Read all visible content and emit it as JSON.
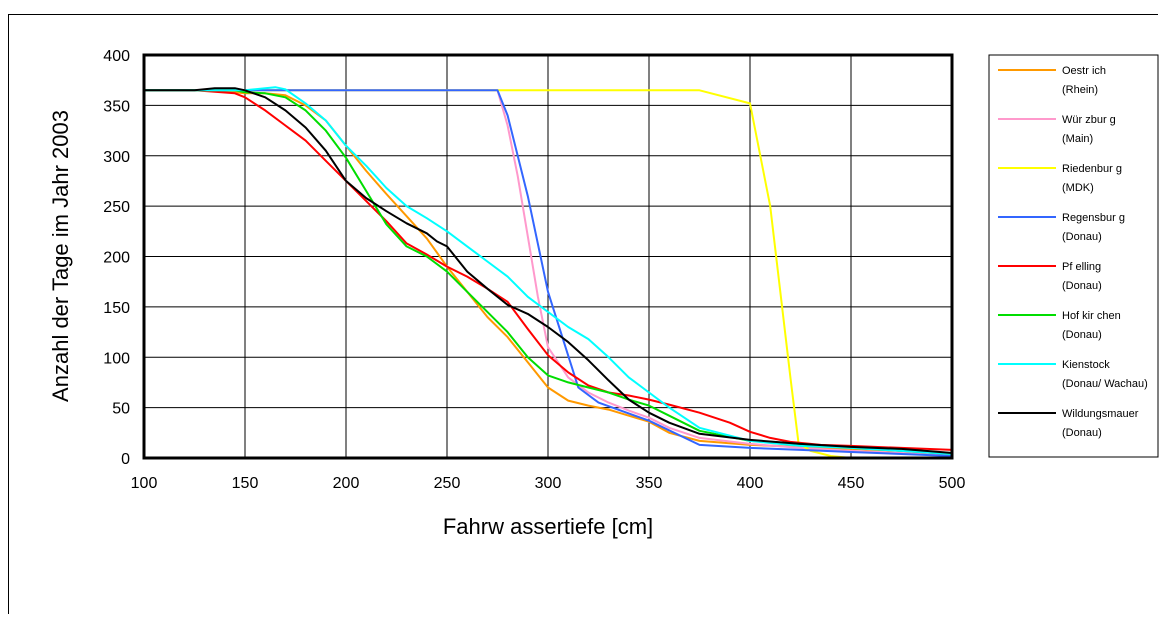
{
  "chart_data": {
    "type": "line",
    "title": "",
    "xlabel": "Fahrw assertiefe [cm]",
    "ylabel": "Anzahl der Tage im Jahr 2003",
    "xlim": [
      100,
      500
    ],
    "ylim": [
      0,
      400
    ],
    "xticks": [
      "100",
      "150",
      "200",
      "250",
      "300",
      "350",
      "400",
      "450",
      "500"
    ],
    "yticks": [
      "0",
      "50",
      "100",
      "150",
      "200",
      "250",
      "300",
      "350",
      "400"
    ],
    "grid": true,
    "legend_position": "right",
    "series": [
      {
        "name": "Oestr ich",
        "name_line2": "(Rhein)",
        "color": "#FF9900",
        "points": [
          [
            100,
            365
          ],
          [
            125,
            365
          ],
          [
            145,
            363
          ],
          [
            150,
            362
          ],
          [
            160,
            362
          ],
          [
            170,
            360
          ],
          [
            180,
            350
          ],
          [
            190,
            335
          ],
          [
            200,
            310
          ],
          [
            210,
            285
          ],
          [
            220,
            262
          ],
          [
            230,
            240
          ],
          [
            240,
            218
          ],
          [
            250,
            190
          ],
          [
            260,
            165
          ],
          [
            270,
            140
          ],
          [
            280,
            120
          ],
          [
            290,
            95
          ],
          [
            300,
            70
          ],
          [
            310,
            57
          ],
          [
            320,
            52
          ],
          [
            330,
            48
          ],
          [
            340,
            42
          ],
          [
            350,
            36
          ],
          [
            360,
            25
          ],
          [
            375,
            17
          ],
          [
            400,
            13
          ],
          [
            425,
            11
          ],
          [
            450,
            9
          ],
          [
            475,
            7
          ],
          [
            500,
            5
          ]
        ]
      },
      {
        "name": "Wür zbur g",
        "name_line2": "(Main)",
        "color": "#FF99CC",
        "points": [
          [
            100,
            365
          ],
          [
            150,
            365
          ],
          [
            275,
            365
          ],
          [
            280,
            330
          ],
          [
            285,
            280
          ],
          [
            290,
            220
          ],
          [
            295,
            160
          ],
          [
            300,
            110
          ],
          [
            310,
            80
          ],
          [
            320,
            65
          ],
          [
            330,
            55
          ],
          [
            340,
            47
          ],
          [
            350,
            40
          ],
          [
            360,
            30
          ],
          [
            375,
            20
          ],
          [
            400,
            14
          ],
          [
            425,
            10
          ],
          [
            450,
            7
          ],
          [
            475,
            5
          ],
          [
            500,
            3
          ]
        ]
      },
      {
        "name": "Riedenbur g",
        "name_line2": "(MDK)",
        "color": "#FFFF00",
        "points": [
          [
            100,
            365
          ],
          [
            150,
            365
          ],
          [
            275,
            365
          ],
          [
            375,
            365
          ],
          [
            400,
            352
          ],
          [
            410,
            250
          ],
          [
            420,
            80
          ],
          [
            424,
            15
          ],
          [
            430,
            7
          ],
          [
            440,
            2
          ],
          [
            450,
            0
          ],
          [
            500,
            0
          ]
        ]
      },
      {
        "name": "Regensbur g",
        "name_line2": "(Donau)",
        "color": "#3366FF",
        "points": [
          [
            100,
            365
          ],
          [
            150,
            365
          ],
          [
            200,
            365
          ],
          [
            250,
            365
          ],
          [
            275,
            365
          ],
          [
            280,
            340
          ],
          [
            290,
            260
          ],
          [
            300,
            165
          ],
          [
            315,
            70
          ],
          [
            325,
            55
          ],
          [
            350,
            37
          ],
          [
            375,
            13
          ],
          [
            400,
            10
          ],
          [
            425,
            8
          ],
          [
            450,
            6
          ],
          [
            475,
            4
          ],
          [
            500,
            2
          ]
        ]
      },
      {
        "name": "Pf elling",
        "name_line2": "(Donau)",
        "color": "#FF0000",
        "points": [
          [
            100,
            365
          ],
          [
            125,
            365
          ],
          [
            145,
            362
          ],
          [
            150,
            358
          ],
          [
            160,
            345
          ],
          [
            170,
            330
          ],
          [
            180,
            315
          ],
          [
            190,
            295
          ],
          [
            200,
            275
          ],
          [
            210,
            255
          ],
          [
            220,
            235
          ],
          [
            230,
            213
          ],
          [
            240,
            202
          ],
          [
            250,
            190
          ],
          [
            260,
            180
          ],
          [
            270,
            168
          ],
          [
            280,
            155
          ],
          [
            290,
            128
          ],
          [
            300,
            102
          ],
          [
            310,
            85
          ],
          [
            320,
            72
          ],
          [
            330,
            65
          ],
          [
            340,
            62
          ],
          [
            350,
            58
          ],
          [
            360,
            53
          ],
          [
            375,
            45
          ],
          [
            390,
            35
          ],
          [
            400,
            26
          ],
          [
            410,
            20
          ],
          [
            420,
            16
          ],
          [
            435,
            13
          ],
          [
            450,
            12
          ],
          [
            475,
            10
          ],
          [
            500,
            8
          ]
        ]
      },
      {
        "name": "Hof kir chen",
        "name_line2": "(Donau)",
        "color": "#00DD00",
        "points": [
          [
            100,
            365
          ],
          [
            125,
            365
          ],
          [
            145,
            365
          ],
          [
            150,
            363
          ],
          [
            160,
            362
          ],
          [
            170,
            358
          ],
          [
            180,
            345
          ],
          [
            190,
            325
          ],
          [
            200,
            298
          ],
          [
            210,
            265
          ],
          [
            220,
            232
          ],
          [
            230,
            210
          ],
          [
            240,
            200
          ],
          [
            250,
            185
          ],
          [
            260,
            165
          ],
          [
            270,
            145
          ],
          [
            280,
            125
          ],
          [
            290,
            100
          ],
          [
            300,
            82
          ],
          [
            310,
            75
          ],
          [
            320,
            70
          ],
          [
            330,
            65
          ],
          [
            340,
            58
          ],
          [
            350,
            52
          ],
          [
            360,
            42
          ],
          [
            375,
            27
          ],
          [
            400,
            17
          ],
          [
            425,
            13
          ],
          [
            450,
            10
          ],
          [
            475,
            7
          ],
          [
            500,
            4
          ]
        ]
      },
      {
        "name": "Kienstock",
        "name_line2": "(Donau/ Wachau)",
        "color": "#00FFFF",
        "points": [
          [
            100,
            365
          ],
          [
            150,
            365
          ],
          [
            160,
            367
          ],
          [
            165,
            368
          ],
          [
            170,
            366
          ],
          [
            180,
            352
          ],
          [
            190,
            335
          ],
          [
            200,
            310
          ],
          [
            210,
            290
          ],
          [
            220,
            268
          ],
          [
            230,
            250
          ],
          [
            240,
            238
          ],
          [
            250,
            225
          ],
          [
            260,
            210
          ],
          [
            270,
            195
          ],
          [
            280,
            180
          ],
          [
            290,
            160
          ],
          [
            300,
            145
          ],
          [
            310,
            130
          ],
          [
            320,
            118
          ],
          [
            330,
            100
          ],
          [
            340,
            80
          ],
          [
            350,
            65
          ],
          [
            360,
            50
          ],
          [
            375,
            30
          ],
          [
            400,
            17
          ],
          [
            425,
            12
          ],
          [
            450,
            10
          ],
          [
            475,
            7
          ],
          [
            500,
            4
          ]
        ]
      },
      {
        "name": "Wildungsmauer",
        "name_line2": "(Donau)",
        "color": "#000000",
        "points": [
          [
            100,
            365
          ],
          [
            125,
            365
          ],
          [
            135,
            367
          ],
          [
            145,
            367
          ],
          [
            150,
            365
          ],
          [
            160,
            358
          ],
          [
            170,
            345
          ],
          [
            180,
            328
          ],
          [
            190,
            305
          ],
          [
            200,
            275
          ],
          [
            210,
            258
          ],
          [
            220,
            245
          ],
          [
            230,
            233
          ],
          [
            240,
            223
          ],
          [
            245,
            215
          ],
          [
            250,
            210
          ],
          [
            260,
            185
          ],
          [
            270,
            168
          ],
          [
            280,
            152
          ],
          [
            290,
            143
          ],
          [
            300,
            130
          ],
          [
            310,
            115
          ],
          [
            320,
            97
          ],
          [
            330,
            77
          ],
          [
            340,
            58
          ],
          [
            350,
            45
          ],
          [
            360,
            35
          ],
          [
            375,
            24
          ],
          [
            400,
            18
          ],
          [
            425,
            14
          ],
          [
            450,
            11
          ],
          [
            475,
            9
          ],
          [
            500,
            5
          ]
        ]
      }
    ]
  }
}
